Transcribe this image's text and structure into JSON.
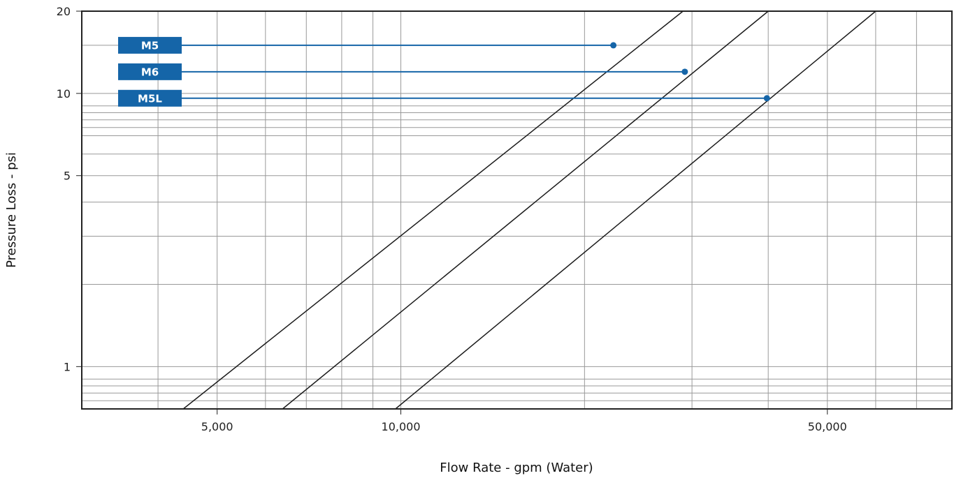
{
  "chart_data": {
    "type": "line",
    "title": "",
    "xlabel": "Flow Rate - gpm (Water)",
    "ylabel": "Pressure Loss - psi",
    "xscale": "log",
    "yscale": "log",
    "xlim": [
      3000,
      80000
    ],
    "ylim": [
      0.7,
      20
    ],
    "x_ticks": [
      {
        "value": 5000,
        "label": "5,000"
      },
      {
        "value": 10000,
        "label": "10,000"
      },
      {
        "value": 50000,
        "label": "50,000"
      }
    ],
    "y_ticks": [
      {
        "value": 1,
        "label": "1"
      },
      {
        "value": 5,
        "label": "5"
      },
      {
        "value": 10,
        "label": "10"
      },
      {
        "value": 20,
        "label": "20"
      }
    ],
    "x_gridlines": [
      4000,
      5000,
      6000,
      7000,
      8000,
      9000,
      10000,
      20000,
      30000,
      40000,
      50000,
      60000,
      70000
    ],
    "y_gridlines": [
      0.7,
      0.75,
      0.8,
      0.85,
      0.9,
      1,
      2,
      3,
      4,
      5,
      6,
      7,
      7.5,
      8,
      8.5,
      9,
      10,
      15,
      20
    ],
    "grid": true,
    "series": [
      {
        "name": "M5",
        "x": [
          4400,
          29000
        ],
        "y": [
          0.7,
          20
        ],
        "marker": {
          "x": 22300,
          "y": 15
        }
      },
      {
        "name": "M6",
        "x": [
          6400,
          40000
        ],
        "y": [
          0.7,
          20
        ],
        "marker": {
          "x": 29200,
          "y": 12
        }
      },
      {
        "name": "M5L",
        "x": [
          9800,
          60000
        ],
        "y": [
          0.7,
          20
        ],
        "marker": {
          "x": 39800,
          "y": 9.6
        }
      }
    ],
    "colors": {
      "series_line": "#1a1a1a",
      "marker": "#1565a8",
      "badge": "#1565a8",
      "grid": "#999999",
      "axis": "#222222"
    }
  }
}
